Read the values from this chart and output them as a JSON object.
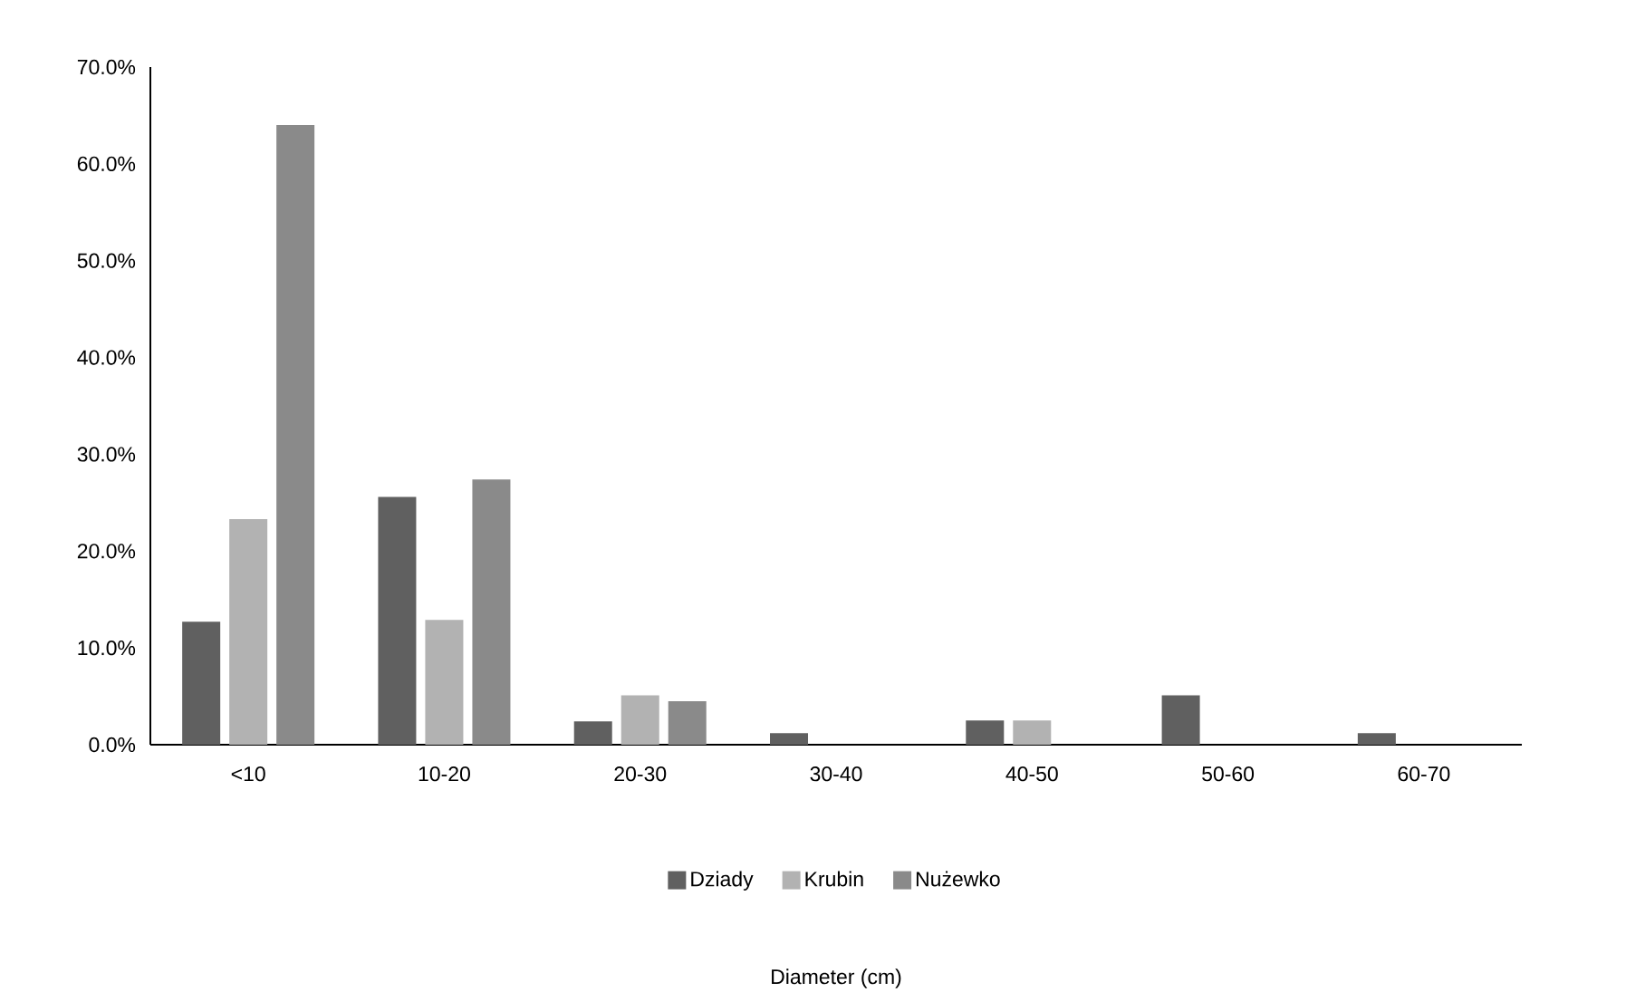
{
  "chart_data": {
    "type": "bar",
    "annotations": [
      "Diameter (cm)"
    ],
    "categories": [
      "<10",
      "10-20",
      "20-30",
      "30-40",
      "40-50",
      "50-60",
      "60-70"
    ],
    "series": [
      {
        "name": "Dziady",
        "color": "#606060",
        "values": [
          12.7,
          25.6,
          2.4,
          1.2,
          2.5,
          5.1,
          1.2
        ]
      },
      {
        "name": "Krubin",
        "color": "#b2b2b2",
        "values": [
          23.3,
          12.9,
          5.1,
          0,
          2.5,
          0,
          0
        ]
      },
      {
        "name": "Nużewko",
        "color": "#8a8a8a",
        "values": [
          64.0,
          27.4,
          4.5,
          0,
          0,
          0,
          0
        ]
      }
    ],
    "ylim": [
      0,
      70
    ],
    "yticks": [
      {
        "value": 0,
        "label": "0.0%"
      },
      {
        "value": 10,
        "label": "10.0%"
      },
      {
        "value": 20,
        "label": "20.0%"
      },
      {
        "value": 30,
        "label": "30.0%"
      },
      {
        "value": 40,
        "label": "40.0%"
      },
      {
        "value": 50,
        "label": "50.0%"
      },
      {
        "value": 60,
        "label": "60.0%"
      },
      {
        "value": 70,
        "label": "70.0%"
      }
    ],
    "grid": false,
    "legend": "bottom"
  }
}
